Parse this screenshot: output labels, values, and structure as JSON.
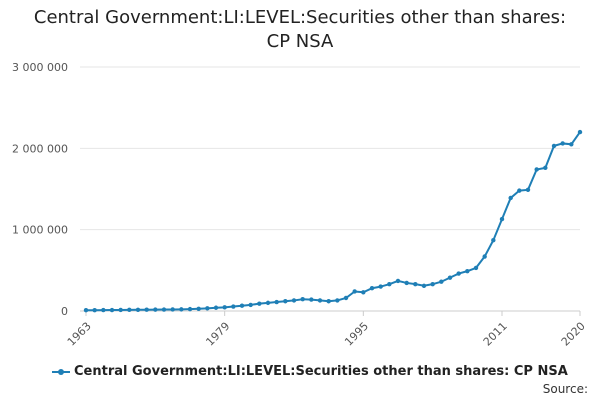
{
  "chart_data": {
    "type": "line",
    "title": "Central Government:LI:LEVEL:Securities other than shares: CP NSA",
    "xlabel": "",
    "ylabel": "",
    "xlim": [
      1963,
      2020
    ],
    "ylim": [
      0,
      3000000
    ],
    "y_ticks": [
      {
        "value": 0,
        "label": "0"
      },
      {
        "value": 1000000,
        "label": "1 000 000"
      },
      {
        "value": 2000000,
        "label": "2 000 000"
      },
      {
        "value": 3000000,
        "label": "3 000 000"
      }
    ],
    "x_ticks": [
      {
        "value": 1963,
        "label": "1963"
      },
      {
        "value": 1979,
        "label": "1979"
      },
      {
        "value": 1995,
        "label": "1995"
      },
      {
        "value": 2011,
        "label": "2011"
      },
      {
        "value": 2020,
        "label": "2020"
      }
    ],
    "grid": true,
    "legend_placement": "bottom",
    "series_color": "#1f7fb6",
    "series": [
      {
        "name": "Central Government:LI:LEVEL:Securities other than shares: CP NSA",
        "x": [
          1963,
          1964,
          1965,
          1966,
          1967,
          1968,
          1969,
          1970,
          1971,
          1972,
          1973,
          1974,
          1975,
          1976,
          1977,
          1978,
          1979,
          1980,
          1981,
          1982,
          1983,
          1984,
          1985,
          1986,
          1987,
          1988,
          1989,
          1990,
          1991,
          1992,
          1993,
          1994,
          1995,
          1996,
          1997,
          1998,
          1999,
          2000,
          2001,
          2002,
          2003,
          2004,
          2005,
          2006,
          2007,
          2008,
          2009,
          2010,
          2011,
          2012,
          2013,
          2014,
          2015,
          2016,
          2017,
          2018,
          2019,
          2020
        ],
        "values": [
          10000,
          10000,
          11000,
          12000,
          13000,
          14000,
          15000,
          16000,
          17000,
          18000,
          19000,
          20000,
          23000,
          27000,
          33000,
          40000,
          45000,
          55000,
          65000,
          75000,
          90000,
          100000,
          110000,
          120000,
          130000,
          145000,
          140000,
          130000,
          120000,
          130000,
          160000,
          240000,
          230000,
          280000,
          300000,
          330000,
          370000,
          345000,
          330000,
          310000,
          330000,
          360000,
          410000,
          460000,
          490000,
          530000,
          670000,
          870000,
          1130000,
          1390000,
          1480000,
          1490000,
          1740000,
          1760000,
          2030000,
          2060000,
          2050000,
          2200000
        ]
      }
    ]
  },
  "legend": {
    "label": "Central Government:LI:LEVEL:Securities other than shares: CP NSA"
  },
  "source": {
    "label": "Source:"
  }
}
